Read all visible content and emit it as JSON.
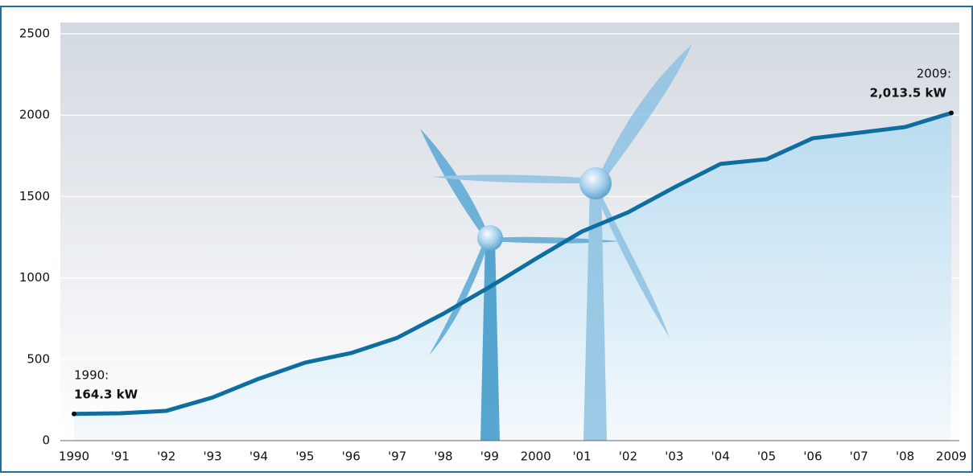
{
  "chart_data": {
    "type": "line",
    "categories": [
      "1990",
      "'91",
      "'92",
      "'93",
      "'94",
      "'95",
      "'96",
      "'97",
      "'98",
      "'99",
      "2000",
      "'01",
      "'02",
      "'03",
      "'04",
      "'05",
      "'06",
      "'07",
      "'08",
      "2009"
    ],
    "values": [
      164.3,
      168,
      183,
      265,
      380,
      479,
      538,
      632,
      780,
      944,
      1117,
      1285,
      1403,
      1556,
      1700,
      1729,
      1858,
      1892,
      1927,
      2013.5
    ],
    "color": "#0d6e9f",
    "ylim": [
      0,
      2500
    ],
    "yticks": [
      0,
      500,
      1000,
      1500,
      2000,
      2500
    ],
    "grid": true,
    "annotations": [
      {
        "label": "1990:",
        "value_label": "164.3 kW"
      },
      {
        "label": "2009:",
        "value_label": "2,013.5 kW"
      }
    ]
  }
}
